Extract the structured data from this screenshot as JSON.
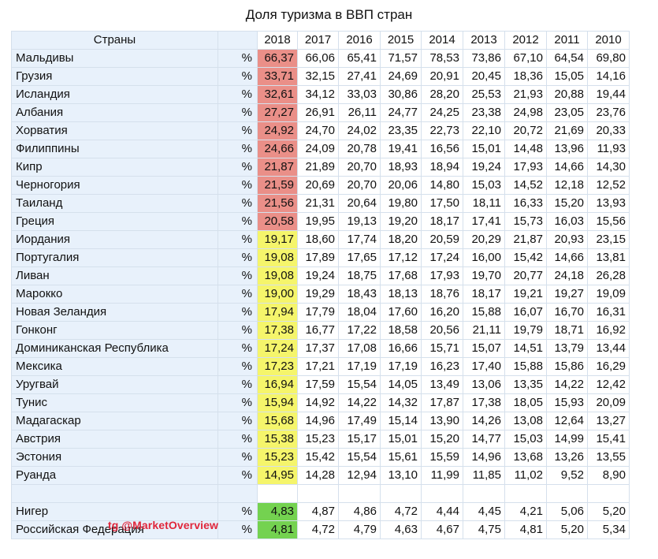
{
  "title": "Доля туризма в ВВП стран",
  "header": {
    "country_label": "Страны",
    "years": [
      "2018",
      "2017",
      "2016",
      "2015",
      "2014",
      "2013",
      "2012",
      "2011",
      "2010"
    ]
  },
  "unit": "%",
  "colors": {
    "red": "#ea8f88",
    "yellow": "#f5f56b",
    "green": "#74d250",
    "header_bg": "#e8f1fb"
  },
  "rows": [
    {
      "country": "Мальдивы",
      "hl": "red",
      "values": [
        "66,37",
        "66,06",
        "65,41",
        "71,57",
        "78,53",
        "73,86",
        "67,10",
        "64,54",
        "69,80"
      ]
    },
    {
      "country": "Грузия",
      "hl": "red",
      "values": [
        "33,71",
        "32,15",
        "27,41",
        "24,69",
        "20,91",
        "20,45",
        "18,36",
        "15,05",
        "14,16"
      ]
    },
    {
      "country": "Исландия",
      "hl": "red",
      "values": [
        "32,61",
        "34,12",
        "33,03",
        "30,86",
        "28,20",
        "25,53",
        "21,93",
        "20,88",
        "19,44"
      ]
    },
    {
      "country": "Албания",
      "hl": "red",
      "values": [
        "27,27",
        "26,91",
        "26,11",
        "24,77",
        "24,25",
        "23,38",
        "24,98",
        "23,05",
        "23,76"
      ]
    },
    {
      "country": "Хорватия",
      "hl": "red",
      "values": [
        "24,92",
        "24,70",
        "24,02",
        "23,35",
        "22,73",
        "22,10",
        "20,72",
        "21,69",
        "20,33"
      ]
    },
    {
      "country": "Филиппины",
      "hl": "red",
      "values": [
        "24,66",
        "24,09",
        "20,78",
        "19,41",
        "16,56",
        "15,01",
        "14,48",
        "13,96",
        "11,93"
      ]
    },
    {
      "country": "Кипр",
      "hl": "red",
      "values": [
        "21,87",
        "21,89",
        "20,70",
        "18,93",
        "18,94",
        "19,24",
        "17,93",
        "14,66",
        "14,30"
      ]
    },
    {
      "country": "Черногория",
      "hl": "red",
      "values": [
        "21,59",
        "20,69",
        "20,70",
        "20,06",
        "14,80",
        "15,03",
        "14,52",
        "12,18",
        "12,52"
      ]
    },
    {
      "country": "Таиланд",
      "hl": "red",
      "values": [
        "21,56",
        "21,31",
        "20,64",
        "19,80",
        "17,50",
        "18,11",
        "16,33",
        "15,20",
        "13,93"
      ]
    },
    {
      "country": "Греция",
      "hl": "red",
      "values": [
        "20,58",
        "19,95",
        "19,13",
        "19,20",
        "18,17",
        "17,41",
        "15,73",
        "16,03",
        "15,56"
      ]
    },
    {
      "country": "Иордания",
      "hl": "yellow",
      "values": [
        "19,17",
        "18,60",
        "17,74",
        "18,20",
        "20,59",
        "20,29",
        "21,87",
        "20,93",
        "23,15"
      ]
    },
    {
      "country": "Португалия",
      "hl": "yellow",
      "values": [
        "19,08",
        "17,89",
        "17,65",
        "17,12",
        "17,24",
        "16,00",
        "15,42",
        "14,66",
        "13,81"
      ]
    },
    {
      "country": "Ливан",
      "hl": "yellow",
      "values": [
        "19,08",
        "19,24",
        "18,75",
        "17,68",
        "17,93",
        "19,70",
        "20,77",
        "24,18",
        "26,28"
      ]
    },
    {
      "country": "Марокко",
      "hl": "yellow",
      "values": [
        "19,00",
        "19,29",
        "18,43",
        "18,13",
        "18,76",
        "18,17",
        "19,21",
        "19,27",
        "19,09"
      ]
    },
    {
      "country": "Новая Зеландия",
      "hl": "yellow",
      "values": [
        "17,94",
        "17,79",
        "18,04",
        "17,60",
        "16,20",
        "15,88",
        "16,07",
        "16,70",
        "16,31"
      ]
    },
    {
      "country": "Гонконг",
      "hl": "yellow",
      "values": [
        "17,38",
        "16,77",
        "17,22",
        "18,58",
        "20,56",
        "21,11",
        "19,79",
        "18,71",
        "16,92"
      ]
    },
    {
      "country": "Доминиканская Республика",
      "hl": "yellow",
      "values": [
        "17,24",
        "17,37",
        "17,08",
        "16,66",
        "15,71",
        "15,07",
        "14,51",
        "13,79",
        "13,44"
      ]
    },
    {
      "country": "Мексика",
      "hl": "yellow",
      "values": [
        "17,23",
        "17,21",
        "17,19",
        "17,19",
        "16,23",
        "17,40",
        "15,88",
        "15,86",
        "16,29"
      ]
    },
    {
      "country": "Уругвай",
      "hl": "yellow",
      "values": [
        "16,94",
        "17,59",
        "15,54",
        "14,05",
        "13,49",
        "13,06",
        "13,35",
        "14,22",
        "12,42"
      ]
    },
    {
      "country": "Тунис",
      "hl": "yellow",
      "values": [
        "15,94",
        "14,92",
        "14,22",
        "14,32",
        "17,87",
        "17,38",
        "18,05",
        "15,93",
        "20,09"
      ]
    },
    {
      "country": "Мадагаскар",
      "hl": "yellow",
      "values": [
        "15,68",
        "14,96",
        "17,49",
        "15,14",
        "13,90",
        "14,26",
        "13,08",
        "12,64",
        "13,27"
      ]
    },
    {
      "country": "Австрия",
      "hl": "yellow",
      "values": [
        "15,38",
        "15,23",
        "15,17",
        "15,01",
        "15,20",
        "14,77",
        "15,03",
        "14,99",
        "15,41"
      ]
    },
    {
      "country": "Эстония",
      "hl": "yellow",
      "values": [
        "15,23",
        "15,42",
        "15,54",
        "15,61",
        "15,59",
        "14,96",
        "13,68",
        "13,26",
        "13,55"
      ]
    },
    {
      "country": "Руанда",
      "hl": "yellow",
      "values": [
        "14,95",
        "14,28",
        "12,94",
        "13,10",
        "11,99",
        "11,85",
        "11,02",
        "9,52",
        "8,90"
      ]
    }
  ],
  "bottom_rows": [
    {
      "country": "Нигер",
      "hl": "green",
      "values": [
        "4,83",
        "4,87",
        "4,86",
        "4,72",
        "4,44",
        "4,45",
        "4,21",
        "5,06",
        "5,20"
      ]
    },
    {
      "country": "Российская Федерация",
      "hl": "green",
      "values": [
        "4,81",
        "4,72",
        "4,79",
        "4,63",
        "4,67",
        "4,75",
        "4,81",
        "5,20",
        "5,34"
      ]
    }
  ],
  "watermark": "tg  @MarketOverview"
}
